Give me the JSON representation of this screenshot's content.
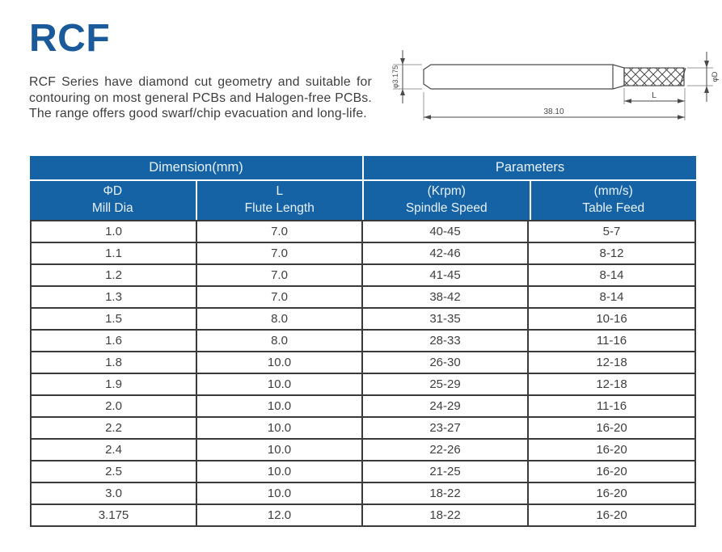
{
  "page": {
    "title": "RCF",
    "description": "RCF Series have diamond cut geometry and suitable for contouring on most general PCBs and Halogen-free PCBs. The range offers good swarf/chip evacuation and long-life."
  },
  "drawing": {
    "shank_diameter_label": "φ3.175",
    "overall_length_label": "38.10",
    "flute_length_label": "L",
    "mill_diameter_label": "φD"
  },
  "table": {
    "group_headers": [
      {
        "label": "Dimension(mm)"
      },
      {
        "label": "Parameters"
      }
    ],
    "columns": [
      {
        "line1": "ΦD",
        "line2": "Mill Dia"
      },
      {
        "line1": "L",
        "line2": "Flute Length"
      },
      {
        "line1": "(Krpm)",
        "line2": "Spindle Speed"
      },
      {
        "line1": "(mm/s)",
        "line2": "Table Feed"
      }
    ],
    "rows": [
      [
        "1.0",
        "7.0",
        "40-45",
        "5-7"
      ],
      [
        "1.1",
        "7.0",
        "42-46",
        "8-12"
      ],
      [
        "1.2",
        "7.0",
        "41-45",
        "8-14"
      ],
      [
        "1.3",
        "7.0",
        "38-42",
        "8-14"
      ],
      [
        "1.5",
        "8.0",
        "31-35",
        "10-16"
      ],
      [
        "1.6",
        "8.0",
        "28-33",
        "11-16"
      ],
      [
        "1.8",
        "10.0",
        "26-30",
        "12-18"
      ],
      [
        "1.9",
        "10.0",
        "25-29",
        "12-18"
      ],
      [
        "2.0",
        "10.0",
        "24-29",
        "11-16"
      ],
      [
        "2.2",
        "10.0",
        "23-27",
        "16-20"
      ],
      [
        "2.4",
        "10.0",
        "22-26",
        "16-20"
      ],
      [
        "2.5",
        "10.0",
        "21-25",
        "16-20"
      ],
      [
        "3.0",
        "10.0",
        "18-22",
        "16-20"
      ],
      [
        "3.175",
        "12.0",
        "18-22",
        "16-20"
      ]
    ]
  },
  "colors": {
    "header_blue": "#1563A5",
    "title_blue": "#1A5A9B",
    "header_text": "#E8F1F9",
    "body_text": "#3f3f3f",
    "grid_line": "#3a3a3a"
  }
}
